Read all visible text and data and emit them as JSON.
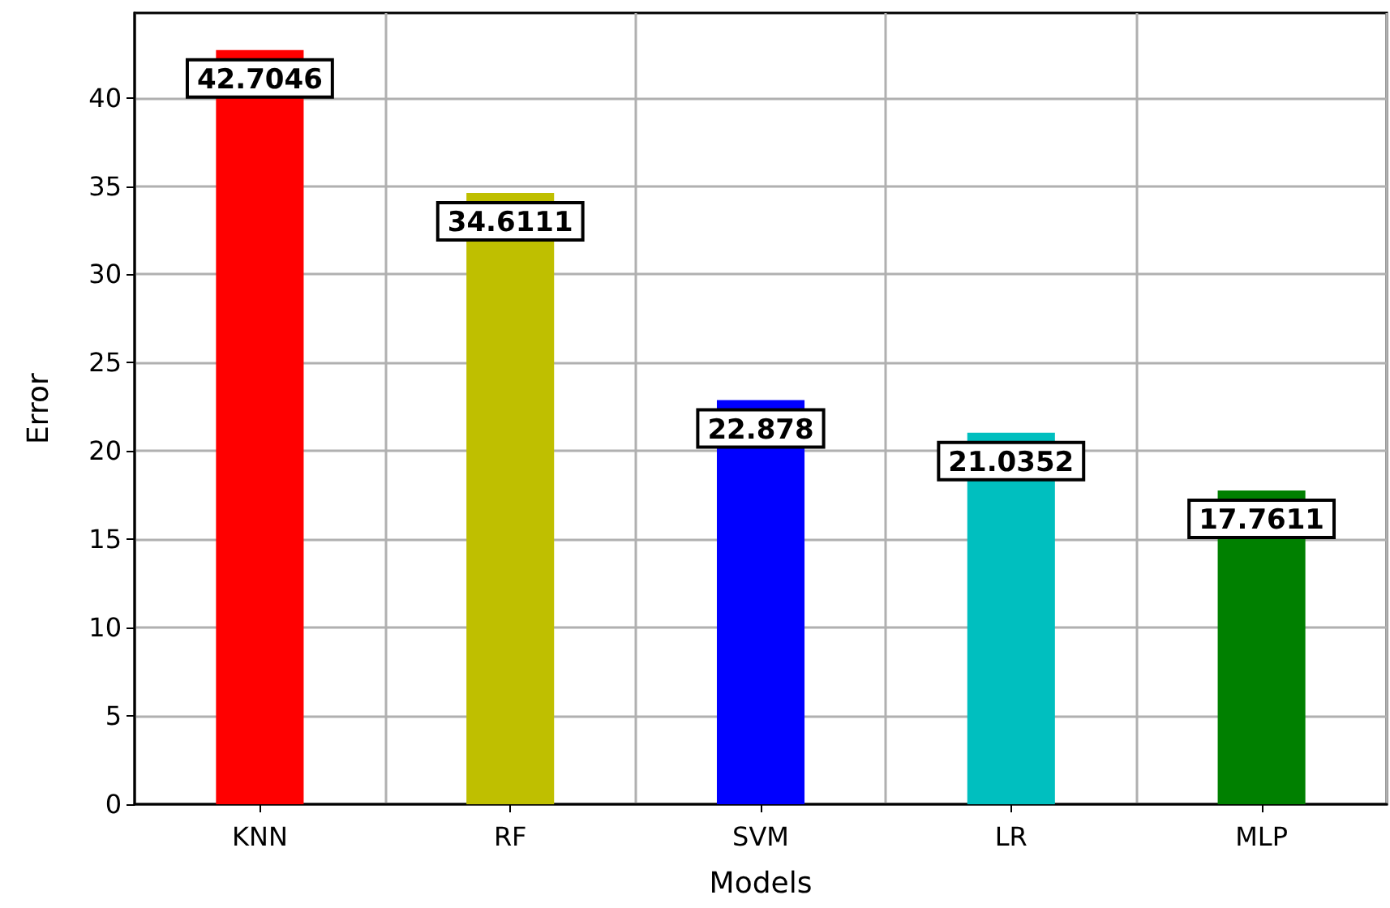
{
  "chart_data": {
    "type": "bar",
    "xlabel": "Models",
    "ylabel": "Error",
    "categories": [
      "KNN",
      "RF",
      "SVM",
      "LR",
      "MLP"
    ],
    "values": [
      42.7046,
      34.6111,
      22.878,
      21.0352,
      17.7611
    ],
    "colors": [
      "#ff0000",
      "#bfbf00",
      "#0000ff",
      "#00bfbf",
      "#008000"
    ],
    "ylim": [
      0,
      44.8
    ],
    "yticks": [
      0,
      5,
      10,
      15,
      20,
      25,
      30,
      35,
      40
    ],
    "grid": true,
    "data_labels": true
  }
}
